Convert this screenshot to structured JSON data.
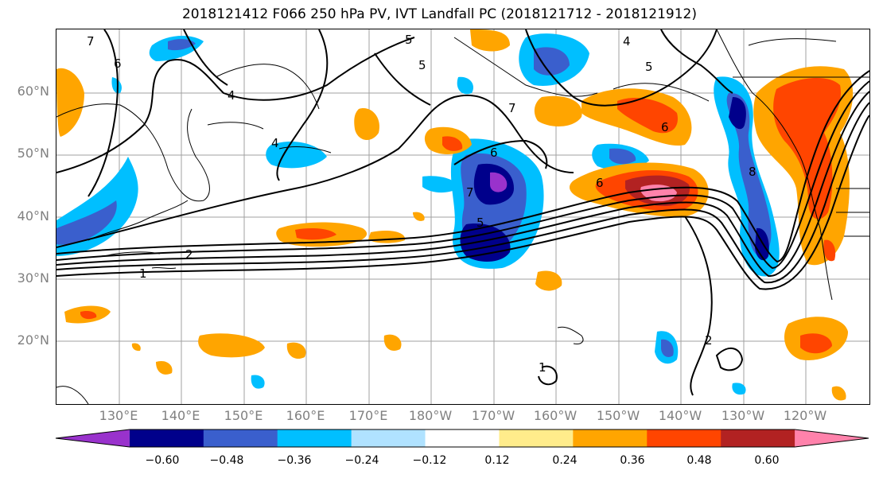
{
  "title": "2018121412 F066 250 hPa PV, IVT Landfall PC (2018121712 - 2018121912)",
  "lat_labels": [
    "60°N",
    "50°N",
    "40°N",
    "30°N",
    "20°N"
  ],
  "lon_labels": [
    "130°E",
    "140°E",
    "150°E",
    "160°E",
    "170°E",
    "180°W",
    "170°W",
    "160°W",
    "150°W",
    "140°W",
    "130°W",
    "120°W"
  ],
  "colorbar": {
    "ticks": [
      "−0.60",
      "−0.48",
      "−0.36",
      "−0.24",
      "−0.12",
      "0.12",
      "0.24",
      "0.36",
      "0.48",
      "0.60"
    ],
    "colors": [
      "#9932cc",
      "#00008b",
      "#3a5fcd",
      "#00bfff",
      "#b0e2ff",
      "#ffffff",
      "#ffec8b",
      "#ffa500",
      "#ff4500",
      "#b22222",
      "#ff82ab"
    ]
  },
  "contour_labels": [
    "7",
    "6",
    "5",
    "4",
    "4",
    "5",
    "4",
    "5",
    "7",
    "6",
    "6",
    "6",
    "7",
    "5",
    "2",
    "1",
    "8",
    "2",
    "1"
  ]
}
